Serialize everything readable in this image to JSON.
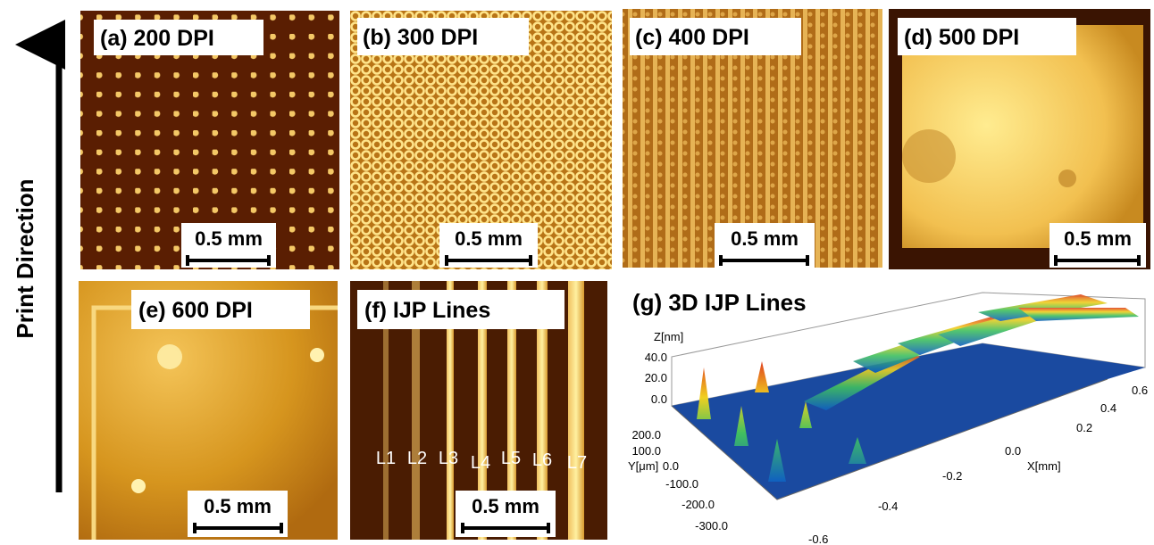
{
  "sidebar": {
    "label": "Print Direction"
  },
  "panels": [
    {
      "label": "(a) 200 DPI",
      "scale_bar": "0.5 mm"
    },
    {
      "label": "(b) 300 DPI",
      "scale_bar": "0.5 mm"
    },
    {
      "label": "(c) 400 DPI",
      "scale_bar": "0.5 mm"
    },
    {
      "label": "(d) 500 DPI",
      "scale_bar": "0.5 mm"
    },
    {
      "label": "(e) 600 DPI",
      "scale_bar": "0.5 mm"
    },
    {
      "label": "(f) IJP Lines",
      "scale_bar": "0.5 mm",
      "line_labels": [
        "L1",
        "L2",
        "L3",
        "L4",
        "L5",
        "L6",
        "L7"
      ]
    }
  ],
  "plot3d": {
    "title": "(g) 3D IJP Lines",
    "z_axis_label": "Z[nm]",
    "z_ticks": [
      "40.0",
      "20.0",
      "0.0"
    ],
    "y_axis_label": "Y[μm]",
    "y_ticks": [
      "200.0",
      "100.0",
      "0.0",
      "-100.0",
      "-200.0",
      "-300.0"
    ],
    "x_axis_label": "X[mm]",
    "x_ticks": [
      "-0.6",
      "-0.4",
      "-0.2",
      "0.0",
      "0.2",
      "0.4",
      "0.6"
    ]
  }
}
